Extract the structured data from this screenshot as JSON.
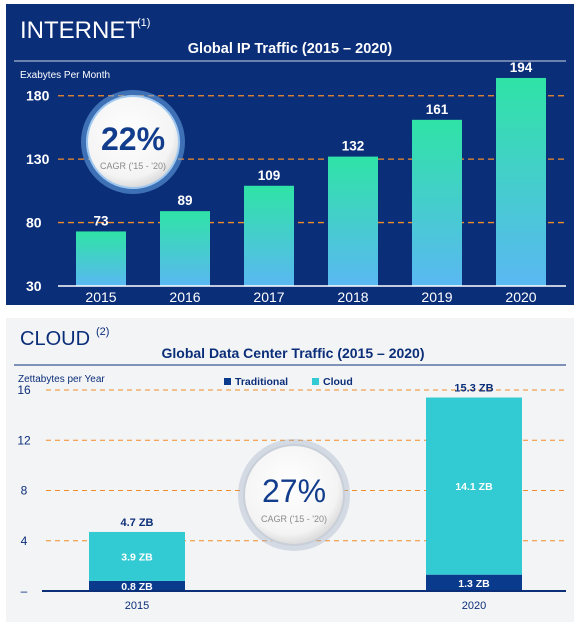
{
  "internet": {
    "heading": "INTERNET",
    "footnote": "(1)",
    "subtitle": "Global IP Traffic (2015 – 2020)",
    "badge_value": "22%",
    "badge_label": "CAGR ('15 - '20)"
  },
  "cloud": {
    "heading": "CLOUD",
    "footnote": "(2)",
    "subtitle": "Global Data Center Traffic (2015 – 2020)",
    "badge_value": "27%",
    "badge_label": "CAGR ('15 - '20)"
  },
  "colors": {
    "internet_bg": "#0b2e79",
    "cloud_bg": "#f3f4f6",
    "bar_top": "#2fe3a6",
    "bar_bottom": "#5ab8f2",
    "grid_orange": "#f28c28",
    "traditional": "#0a3a8c",
    "cloud_series": "#33cbd3",
    "title_navy": "#0b2e79"
  },
  "chart_data": [
    {
      "type": "bar",
      "title": "Global IP Traffic (2015 – 2020)",
      "ylabel": "Exabytes Per Month",
      "xlabel": "",
      "categories": [
        "2015",
        "2016",
        "2017",
        "2018",
        "2019",
        "2020"
      ],
      "values": [
        73,
        89,
        109,
        132,
        161,
        194
      ],
      "data_labels": [
        "73",
        "89",
        "109",
        "132",
        "161",
        "194"
      ],
      "y_ticks": [
        "30",
        "80",
        "130",
        "180"
      ],
      "ylim": [
        30,
        205
      ],
      "grid": true
    },
    {
      "type": "bar",
      "stacked": true,
      "title": "Global Data Center Traffic (2015 – 2020)",
      "ylabel": "Zettabytes per Year",
      "xlabel": "",
      "categories": [
        "2015",
        "2020"
      ],
      "series": [
        {
          "name": "Traditional",
          "values": [
            0.8,
            1.3
          ],
          "labels": [
            "0.8 ZB",
            "1.3 ZB"
          ]
        },
        {
          "name": "Cloud",
          "values": [
            3.9,
            14.1
          ],
          "labels": [
            "3.9 ZB",
            "14.1 ZB"
          ]
        }
      ],
      "totals": [
        "4.7 ZB",
        "15.3 ZB"
      ],
      "y_ticks": [
        "–",
        "4",
        "8",
        "12",
        "16"
      ],
      "ylim": [
        0,
        16
      ],
      "legend": "top-center",
      "grid": true
    }
  ]
}
